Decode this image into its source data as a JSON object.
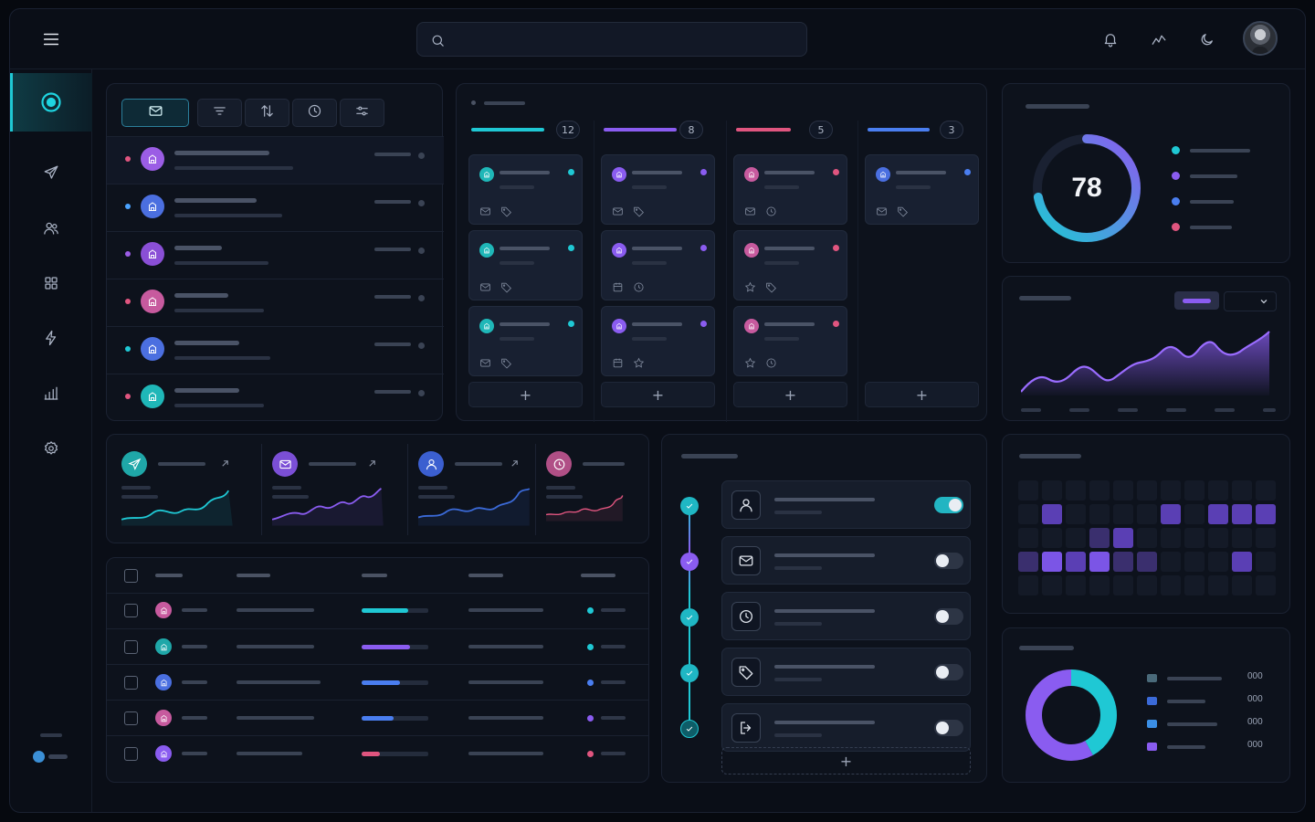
{
  "topbar": {
    "search": {
      "placeholder": ""
    },
    "icons": [
      "menu-icon",
      "search-icon",
      "bell-icon",
      "trend-icon",
      "moon-icon"
    ]
  },
  "sidebar": {
    "items": [
      "dashboard",
      "send",
      "users",
      "grid",
      "lightning",
      "chart",
      "settings"
    ],
    "active": "dashboard"
  },
  "inbox": {
    "toolbar": [
      "mail",
      "filter",
      "sort",
      "clock",
      "sliders"
    ],
    "rows": [
      {
        "dot": "#e0557f",
        "avatar": "#9b5de5"
      },
      {
        "dot": "#4aa3ff",
        "avatar": "#4b6fe0"
      },
      {
        "dot": "#9b5de5",
        "avatar": "#8a4fd6"
      },
      {
        "dot": "#e0557f",
        "avatar": "#c75a9e"
      },
      {
        "dot": "#1fc8d4",
        "avatar": "#4b6fe0"
      },
      {
        "dot": "#e0557f",
        "avatar": "#1fb7b8"
      }
    ]
  },
  "kanban": {
    "columns": [
      {
        "count": "12",
        "color": "#1fc8d4"
      },
      {
        "count": "8",
        "color": "#8a5cf0"
      },
      {
        "count": "5",
        "color": "#e0557f"
      },
      {
        "count": "3",
        "color": "#4a7ef0"
      }
    ],
    "add_label": "+"
  },
  "score": {
    "value": "78",
    "ring_percent": 0.72,
    "legend_colors": [
      "#1fc8d4",
      "#8a5cf0",
      "#4a7ef0",
      "#e0557f"
    ]
  },
  "area_chart": {
    "accent": "#8a5cf0"
  },
  "stats": [
    {
      "icon": "send-icon",
      "color": "#1fa7a8"
    },
    {
      "icon": "mail-icon",
      "color": "#7b4fd6"
    },
    {
      "icon": "user-icon",
      "color": "#3b5fd0"
    },
    {
      "icon": "clock-icon",
      "color": "#b04f86"
    }
  ],
  "table": {
    "rows": [
      {
        "avatar": "#c75a9e",
        "progress": 0.7,
        "bar": "#1fc8d4",
        "dot": "#1fc8d4"
      },
      {
        "avatar": "#1fa7a8",
        "progress": 0.72,
        "bar": "#8a5cf0",
        "dot": "#1fc8d4"
      },
      {
        "avatar": "#4a6fe0",
        "progress": 0.57,
        "bar": "#4a7ef0",
        "dot": "#4a7ef0"
      },
      {
        "avatar": "#c75a9e",
        "progress": 0.48,
        "bar": "#4a7ef0",
        "dot": "#8a5cf0"
      },
      {
        "avatar": "#8a5cf0",
        "progress": 0.28,
        "bar": "#e0557f",
        "dot": "#e0557f"
      }
    ]
  },
  "settings": {
    "rows": [
      {
        "icon": "user-icon",
        "on": true
      },
      {
        "icon": "mail-icon",
        "on": false
      },
      {
        "icon": "clock-icon",
        "on": false
      },
      {
        "icon": "tag-icon",
        "on": false
      },
      {
        "icon": "logout-icon",
        "on": false
      }
    ],
    "add_label": "+"
  },
  "donut": {
    "legend_values": [
      "000",
      "000",
      "000",
      "000"
    ],
    "segments": [
      {
        "color": "#1fc8d4",
        "fraction": 0.42
      },
      {
        "color": "#8a5cf0",
        "fraction": 0.58
      }
    ]
  }
}
